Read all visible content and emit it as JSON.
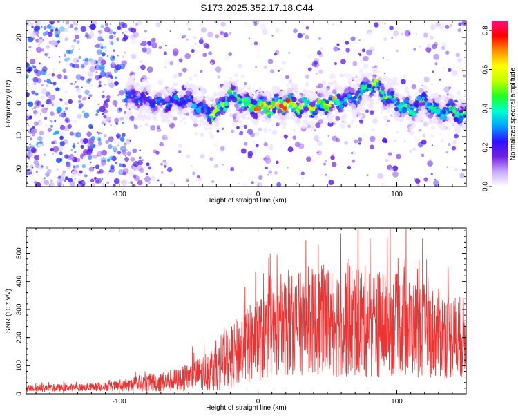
{
  "title": "S173.2025.352.17.18.C44",
  "chart_data": [
    {
      "type": "heatmap",
      "xlabel": "Height of straight line (km)",
      "ylabel": "Frequency (Hz)",
      "xlim": [
        -167,
        150
      ],
      "ylim": [
        -25,
        25
      ],
      "x_ticks": [
        -100,
        0,
        100
      ],
      "y_ticks": [
        -20,
        -10,
        0,
        10,
        20
      ],
      "colorbar": {
        "label": "Normalized spectral amplitude",
        "range": [
          0,
          0.85
        ],
        "ticks": [
          "0.0",
          "0.2",
          "0.4",
          "0.6",
          "0.8"
        ],
        "colors": [
          "#ffffff",
          "#c8a8ff",
          "#7020e0",
          "#3010ff",
          "#00a0ff",
          "#00ffd0",
          "#20ff20",
          "#c0ff00",
          "#ffff00",
          "#ff9000",
          "#ff0000",
          "#ff1080"
        ]
      },
      "ridge": {
        "x": [
          -90,
          -80,
          -70,
          -60,
          -50,
          -40,
          -30,
          -20,
          -10,
          0,
          10,
          20,
          30,
          40,
          50,
          60,
          70,
          80,
          85,
          90,
          100,
          110,
          120,
          130,
          140,
          150
        ],
        "frequency": [
          2,
          1,
          0,
          1,
          1,
          -2,
          -3,
          3,
          0,
          -1,
          -1,
          0,
          -1,
          -1,
          0,
          1,
          2,
          5,
          6,
          3,
          0,
          -2,
          1,
          -3,
          -2,
          -4
        ]
      }
    },
    {
      "type": "line",
      "xlabel": "Height of straight line (km)",
      "ylabel": "SNR (10 * v/v)",
      "xlim": [
        -167,
        150
      ],
      "ylim": [
        0,
        590
      ],
      "x_ticks": [
        -100,
        0,
        100
      ],
      "y_ticks": [
        0,
        100,
        200,
        300,
        400,
        500
      ],
      "color": "#ee3333",
      "series": [
        {
          "x": [
            -167,
            -150,
            -130,
            -110,
            -100,
            -90,
            -80,
            -70,
            -60,
            -50,
            -40,
            -30,
            -20,
            -10,
            0,
            10,
            20,
            30,
            40,
            50,
            60,
            70,
            80,
            90,
            100,
            110,
            120,
            130,
            140,
            150
          ],
          "values": [
            20,
            20,
            22,
            25,
            28,
            32,
            38,
            42,
            48,
            58,
            75,
            100,
            130,
            165,
            190,
            215,
            240,
            250,
            258,
            260,
            262,
            260,
            255,
            250,
            245,
            235,
            225,
            215,
            205,
            200
          ],
          "spread": [
            8,
            8,
            8,
            10,
            12,
            15,
            20,
            22,
            26,
            30,
            40,
            55,
            70,
            85,
            95,
            100,
            110,
            115,
            120,
            125,
            130,
            130,
            125,
            120,
            115,
            110,
            105,
            100,
            95,
            90
          ]
        }
      ]
    }
  ]
}
